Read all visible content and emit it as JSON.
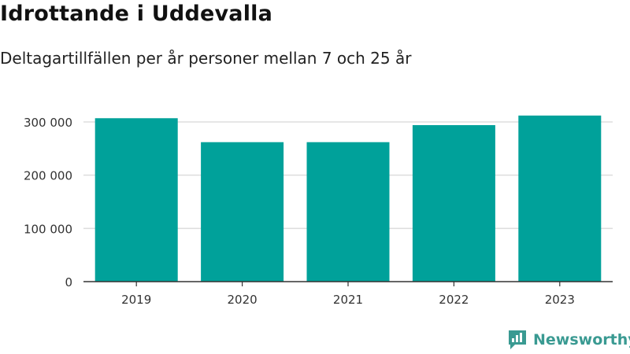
{
  "header": {
    "title": "Idrottande i Uddevalla",
    "subtitle": "Deltagartillfällen per år personer mellan 7 och 25 år"
  },
  "brand": {
    "name": "Newsworthy",
    "icon": "newsworthy-logo-icon",
    "color": "#3a9a92"
  },
  "chart_data": {
    "type": "bar",
    "categories": [
      "2019",
      "2020",
      "2021",
      "2022",
      "2023"
    ],
    "values": [
      307000,
      262000,
      262000,
      294000,
      312000
    ],
    "ylim": [
      0,
      300000
    ],
    "yticks": [
      0,
      100000,
      200000,
      300000
    ],
    "ytick_labels": [
      "0",
      "100 000",
      "200 000",
      "300 000"
    ],
    "grid": true,
    "bar_color": "#00a19a",
    "grid_color": "#dddddd"
  }
}
